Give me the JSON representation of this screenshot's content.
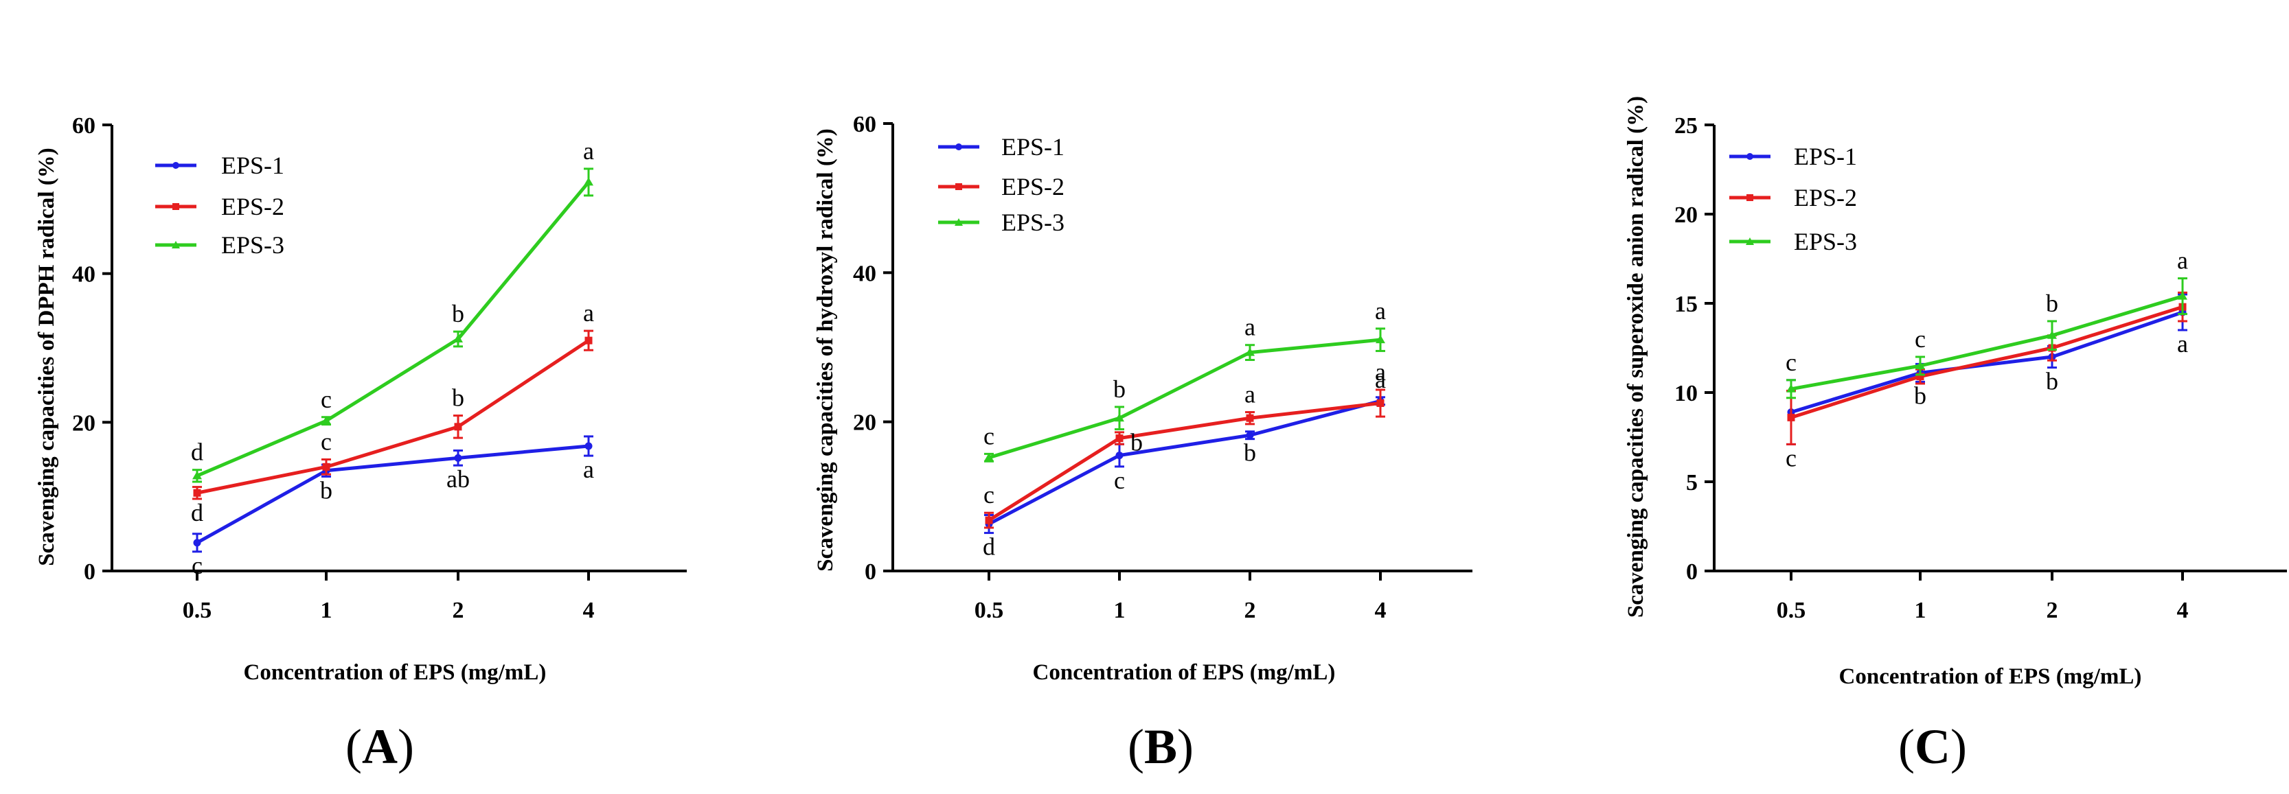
{
  "colors": {
    "EPS-1": "#1f1fe6",
    "EPS-2": "#e61f1f",
    "EPS-3": "#2ecc1f"
  },
  "chart_data": [
    {
      "type": "line",
      "panel_label": "A",
      "categories": [
        "0.5",
        "1",
        "2",
        "4"
      ],
      "xlabel": "Concentration of EPS (mg/mL)",
      "ylabel": "Scavenging capacities of DPPH radical (%)",
      "ylim": [
        0,
        60
      ],
      "yticks": [
        "0",
        "20",
        "40",
        "60"
      ],
      "legend_position": "top-left",
      "series": [
        {
          "name": "EPS-1",
          "values": [
            3.8,
            13.5,
            15.2,
            16.8
          ],
          "errors": [
            1.2,
            0.8,
            1.0,
            1.3
          ],
          "sig": [
            "c",
            "b",
            "ab",
            "a"
          ],
          "sig_pos": [
            "below",
            "below",
            "below",
            "below"
          ]
        },
        {
          "name": "EPS-2",
          "values": [
            10.5,
            14.0,
            19.4,
            31.0
          ],
          "errors": [
            0.8,
            1.0,
            1.5,
            1.3
          ],
          "sig": [
            "d",
            "c",
            "b",
            "a"
          ],
          "sig_pos": [
            "below",
            "above",
            "above",
            "above"
          ]
        },
        {
          "name": "EPS-3",
          "values": [
            12.8,
            20.2,
            31.2,
            52.3
          ],
          "errors": [
            0.8,
            0.5,
            1.0,
            1.8
          ],
          "sig": [
            "d",
            "c",
            "b",
            "a"
          ],
          "sig_pos": [
            "above",
            "above",
            "above",
            "above"
          ]
        }
      ]
    },
    {
      "type": "line",
      "panel_label": "B",
      "categories": [
        "0.5",
        "1",
        "2",
        "4"
      ],
      "xlabel": "Concentration of EPS (mg/mL)",
      "ylabel": "Scavenging capacities of hydroxyl radical (%)",
      "ylim": [
        0,
        60
      ],
      "yticks": [
        "0",
        "20",
        "40",
        "60"
      ],
      "legend_position": "top-left",
      "series": [
        {
          "name": "EPS-1",
          "values": [
            6.3,
            15.5,
            18.2,
            22.8
          ],
          "errors": [
            1.2,
            1.5,
            0.5,
            0.5
          ],
          "sig": [
            "d",
            "c",
            "b",
            "a"
          ],
          "sig_pos": [
            "below",
            "below",
            "below",
            "above"
          ]
        },
        {
          "name": "EPS-2",
          "values": [
            6.8,
            17.8,
            20.5,
            22.5
          ],
          "errors": [
            1.0,
            0.8,
            0.8,
            1.8
          ],
          "sig": [
            "c",
            "b",
            "a",
            "a"
          ],
          "sig_pos": [
            "above",
            "right",
            "above",
            "above"
          ]
        },
        {
          "name": "EPS-3",
          "values": [
            15.2,
            20.5,
            29.3,
            31.0
          ],
          "errors": [
            0.5,
            1.5,
            1.0,
            1.5
          ],
          "sig": [
            "c",
            "b",
            "a",
            "a"
          ],
          "sig_pos": [
            "above",
            "above",
            "above",
            "above"
          ]
        }
      ]
    },
    {
      "type": "line",
      "panel_label": "C",
      "categories": [
        "0.5",
        "1",
        "2",
        "4"
      ],
      "xlabel": "Concentration of EPS (mg/mL)",
      "ylabel": "Scavenging capacities of superoxide anion radical  (%)",
      "ylim": [
        0,
        25
      ],
      "yticks": [
        "0",
        "5",
        "10",
        "15",
        "20",
        "25"
      ],
      "legend_position": "top-left",
      "series": [
        {
          "name": "EPS-1",
          "values": [
            8.9,
            11.1,
            12.0,
            14.5
          ],
          "errors": [
            1.8,
            0.5,
            0.6,
            1.0
          ],
          "sig": [
            "c",
            "b",
            "b",
            "a"
          ],
          "sig_pos": [
            "below",
            "below",
            "below",
            "below"
          ]
        },
        {
          "name": "EPS-2",
          "values": [
            8.6,
            10.9,
            12.5,
            14.8
          ],
          "errors": [
            1.5,
            0.4,
            0.7,
            0.8
          ],
          "sig": [
            "",
            "",
            "",
            ""
          ],
          "sig_pos": [
            "none",
            "none",
            "none",
            "none"
          ]
        },
        {
          "name": "EPS-3",
          "values": [
            10.2,
            11.5,
            13.2,
            15.4
          ],
          "errors": [
            0.5,
            0.5,
            0.8,
            1.0
          ],
          "sig": [
            "c",
            "c",
            "b",
            "a"
          ],
          "sig_pos": [
            "above",
            "above",
            "above",
            "above"
          ]
        }
      ]
    }
  ]
}
